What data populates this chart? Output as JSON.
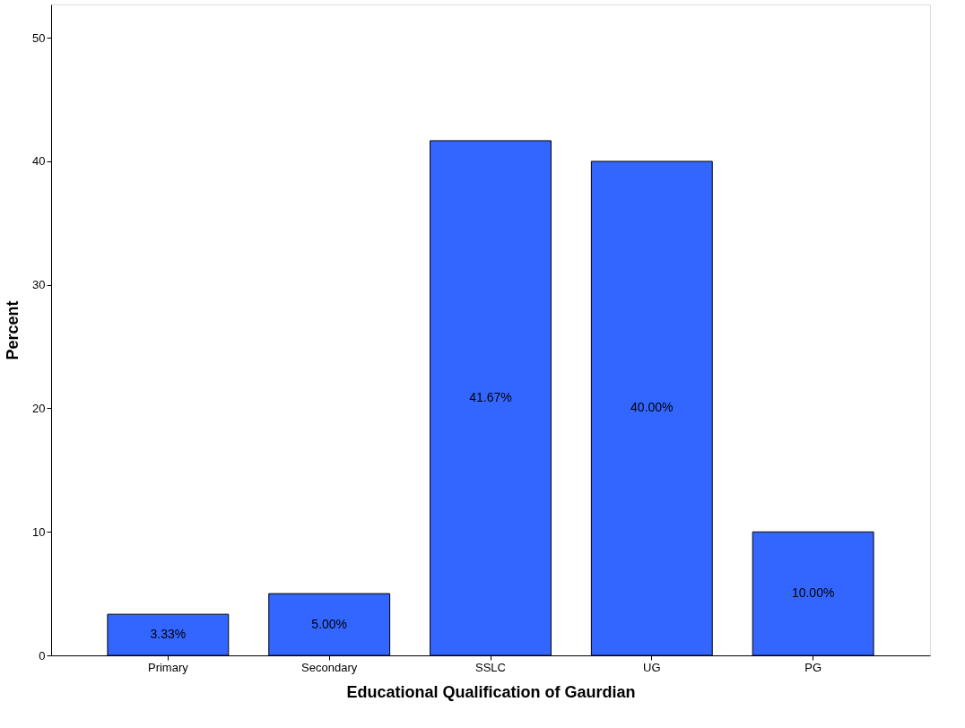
{
  "chart_data": {
    "type": "bar",
    "xlabel": "Educational Qualification of Gaurdian",
    "ylabel": "Percent",
    "categories": [
      "Primary",
      "Secondary",
      "SSLC",
      "UG",
      "PG"
    ],
    "values": [
      3.33,
      5.0,
      41.67,
      40.0,
      10.0
    ],
    "value_labels": [
      "3.33%",
      "5.00%",
      "41.67%",
      "40.00%",
      "10.00%"
    ],
    "color": "#3366ff",
    "ylim": [
      0,
      52.7
    ],
    "yticks": [
      0,
      10,
      20,
      30,
      40,
      50
    ],
    "grid": false
  }
}
